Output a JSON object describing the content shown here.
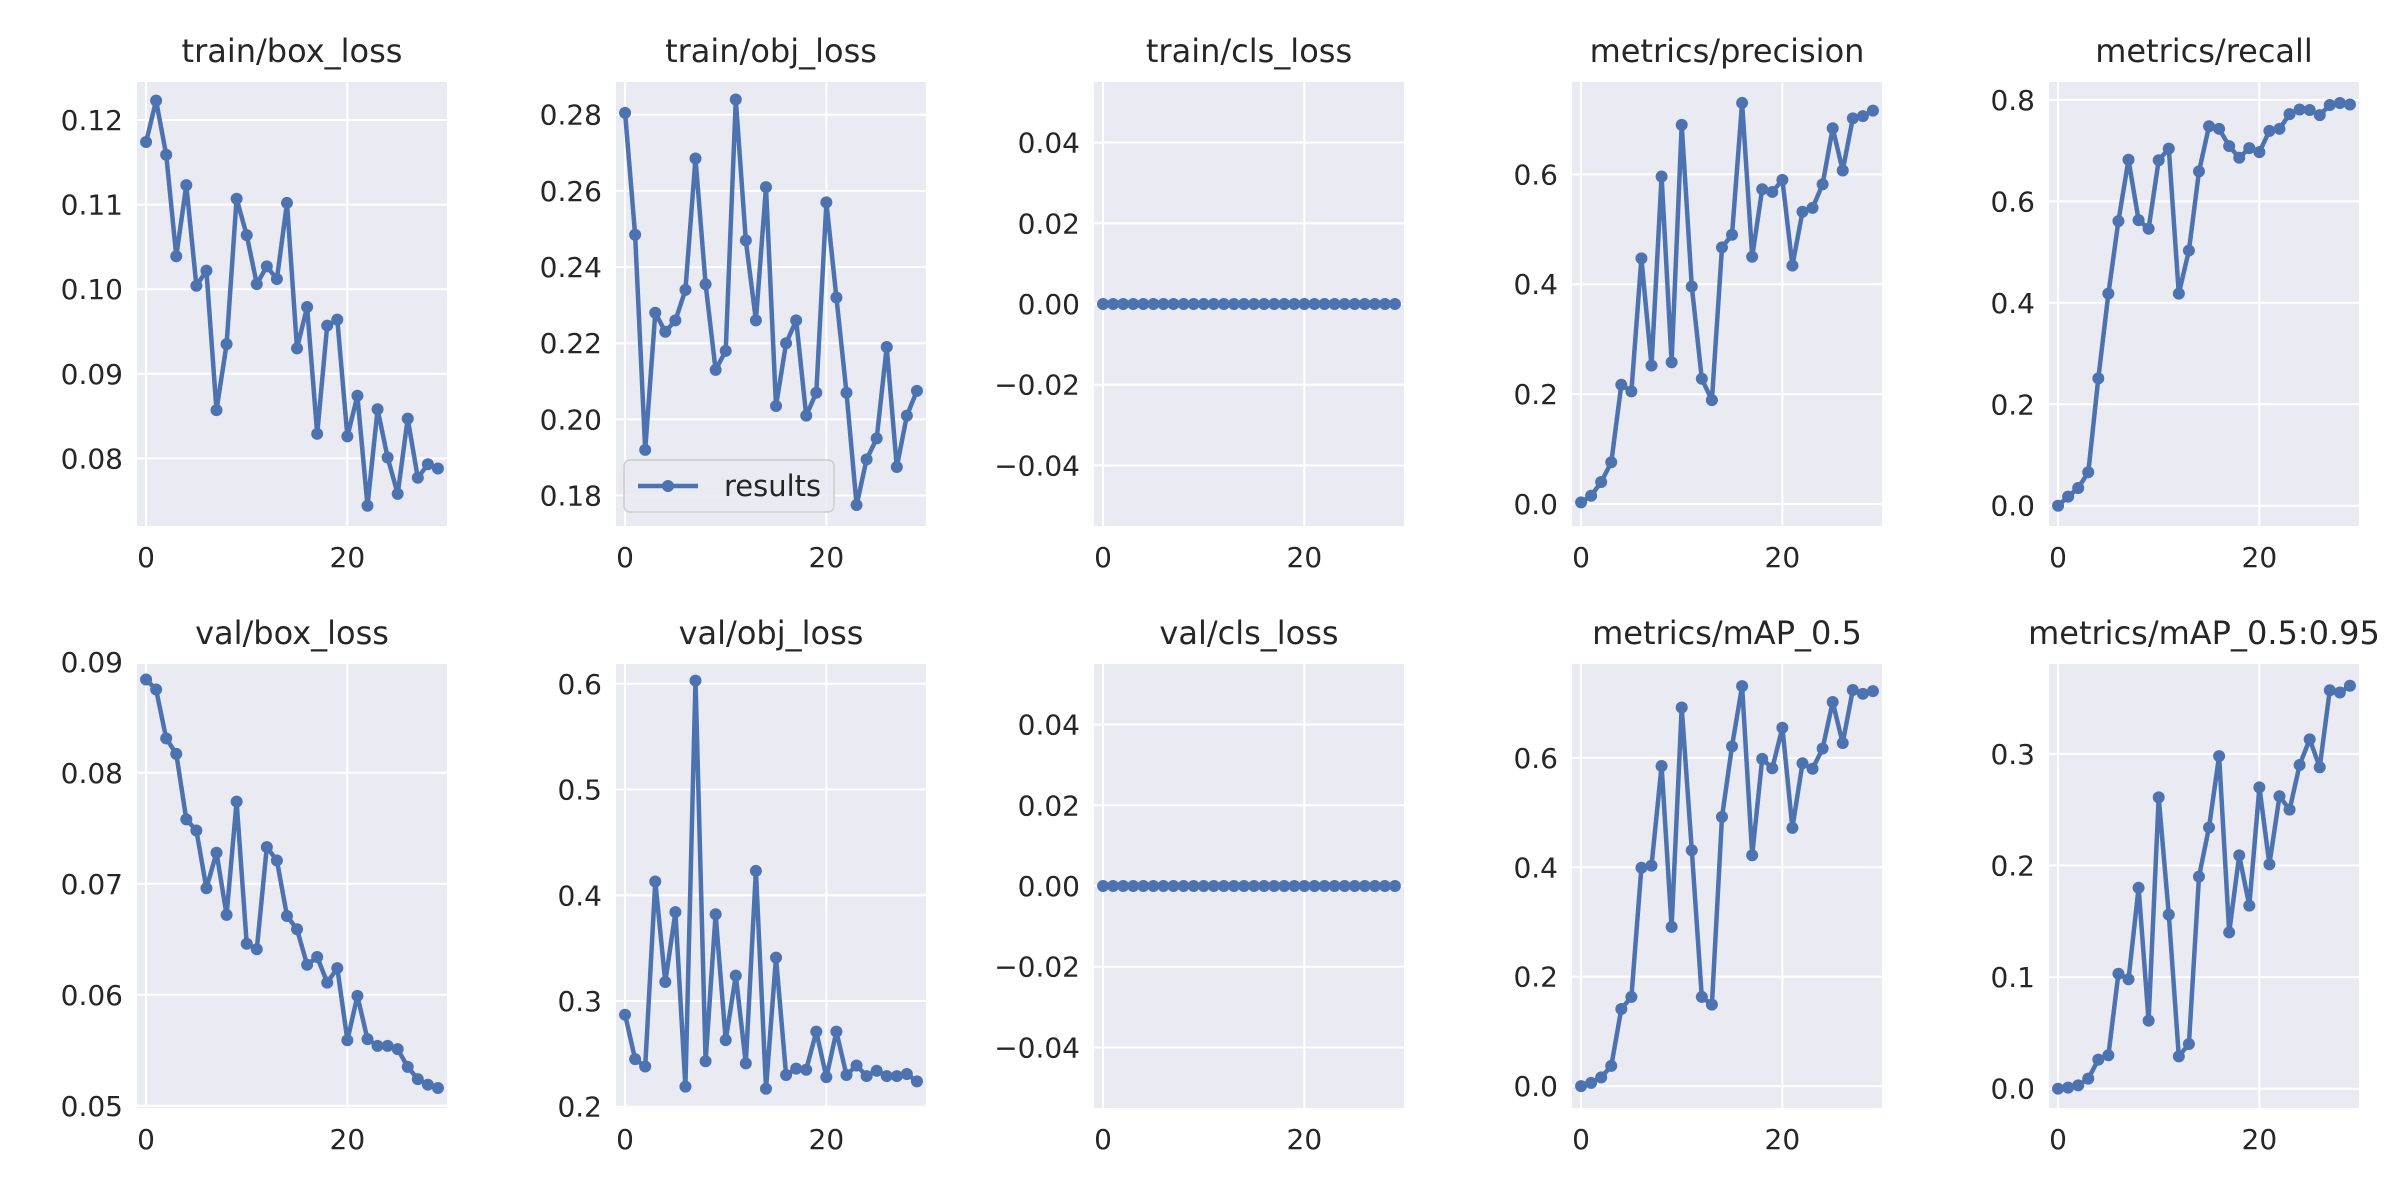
{
  "style": {
    "panel_bg": "#eaeaf2",
    "grid_color": "#ffffff",
    "series_color": "#4c72b0",
    "text_color": "#262626"
  },
  "legend": {
    "label": "results",
    "panel": 1,
    "placement": "lower left"
  },
  "chart_data": [
    {
      "type": "line",
      "title": "train/box_loss",
      "xlabel": "",
      "ylabel": "",
      "xlim": [
        -0.9,
        29.9
      ],
      "ylim": [
        0.072,
        0.1245
      ],
      "xticks": [
        0,
        20
      ],
      "yticks": [
        0.08,
        0.09,
        0.1,
        0.11,
        0.12
      ],
      "ytick_labels": [
        "0.08",
        "0.09",
        "0.10",
        "0.11",
        "0.12"
      ],
      "series": [
        {
          "name": "results",
          "values": [
            0.1174,
            0.1223,
            0.1159,
            0.1039,
            0.1123,
            0.1004,
            0.1022,
            0.0857,
            0.0935,
            0.1107,
            0.1064,
            0.1006,
            0.1027,
            0.1012,
            0.1102,
            0.093,
            0.0979,
            0.0829,
            0.0957,
            0.0964,
            0.0826,
            0.0874,
            0.0744,
            0.0858,
            0.0801,
            0.0758,
            0.0847,
            0.0777,
            0.0793,
            0.0788
          ]
        }
      ]
    },
    {
      "type": "line",
      "title": "train/obj_loss",
      "xlabel": "",
      "ylabel": "",
      "xlim": [
        -0.9,
        29.9
      ],
      "ylim": [
        0.172,
        0.2886
      ],
      "xticks": [
        0,
        20
      ],
      "yticks": [
        0.18,
        0.2,
        0.22,
        0.24,
        0.26,
        0.28
      ],
      "ytick_labels": [
        "0.18",
        "0.20",
        "0.22",
        "0.24",
        "0.26",
        "0.28"
      ],
      "series": [
        {
          "name": "results",
          "values": [
            0.2805,
            0.2485,
            0.192,
            0.228,
            0.223,
            0.226,
            0.234,
            0.2685,
            0.2355,
            0.213,
            0.218,
            0.284,
            0.247,
            0.226,
            0.261,
            0.2035,
            0.22,
            0.226,
            0.201,
            0.207,
            0.257,
            0.232,
            0.207,
            0.1775,
            0.1895,
            0.195,
            0.219,
            0.1875,
            0.201,
            0.2075
          ]
        }
      ]
    },
    {
      "type": "line",
      "title": "train/cls_loss",
      "xlabel": "",
      "ylabel": "",
      "xlim": [
        -0.9,
        29.9
      ],
      "ylim": [
        -0.055,
        0.055
      ],
      "xticks": [
        0,
        20
      ],
      "yticks": [
        -0.04,
        -0.02,
        0.0,
        0.02,
        0.04
      ],
      "ytick_labels": [
        "−0.04",
        "−0.02",
        "0.00",
        "0.02",
        "0.04"
      ],
      "series": [
        {
          "name": "results",
          "values": [
            0,
            0,
            0,
            0,
            0,
            0,
            0,
            0,
            0,
            0,
            0,
            0,
            0,
            0,
            0,
            0,
            0,
            0,
            0,
            0,
            0,
            0,
            0,
            0,
            0,
            0,
            0,
            0,
            0,
            0
          ]
        }
      ]
    },
    {
      "type": "line",
      "title": "metrics/precision",
      "xlabel": "",
      "ylabel": "",
      "xlim": [
        -0.9,
        29.9
      ],
      "ylim": [
        -0.04,
        0.7681
      ],
      "xticks": [
        0,
        20
      ],
      "yticks": [
        0.0,
        0.2,
        0.4,
        0.6
      ],
      "ytick_labels": [
        "0.0",
        "0.2",
        "0.4",
        "0.6"
      ],
      "series": [
        {
          "name": "results",
          "values": [
            0.003,
            0.015,
            0.04,
            0.076,
            0.217,
            0.205,
            0.447,
            0.252,
            0.596,
            0.258,
            0.69,
            0.396,
            0.228,
            0.189,
            0.467,
            0.49,
            0.73,
            0.45,
            0.573,
            0.568,
            0.59,
            0.434,
            0.532,
            0.539,
            0.582,
            0.684,
            0.607,
            0.702,
            0.706,
            0.716
          ]
        }
      ]
    },
    {
      "type": "line",
      "title": "metrics/recall",
      "xlabel": "",
      "ylabel": "",
      "xlim": [
        -0.9,
        29.9
      ],
      "ylim": [
        -0.04,
        0.8353
      ],
      "xticks": [
        0,
        20
      ],
      "yticks": [
        0.0,
        0.2,
        0.4,
        0.6,
        0.8
      ],
      "ytick_labels": [
        "0.0",
        "0.2",
        "0.4",
        "0.6",
        "0.8"
      ],
      "series": [
        {
          "name": "results",
          "values": [
            0.0,
            0.018,
            0.035,
            0.066,
            0.251,
            0.418,
            0.561,
            0.682,
            0.563,
            0.546,
            0.681,
            0.704,
            0.418,
            0.503,
            0.659,
            0.748,
            0.743,
            0.709,
            0.686,
            0.705,
            0.697,
            0.739,
            0.743,
            0.772,
            0.781,
            0.78,
            0.77,
            0.79,
            0.794,
            0.791
          ]
        }
      ]
    },
    {
      "type": "line",
      "title": "val/box_loss",
      "xlabel": "",
      "ylabel": "",
      "xlim": [
        -0.9,
        29.9
      ],
      "ylim": [
        0.0498,
        0.0898
      ],
      "xticks": [
        0,
        20
      ],
      "yticks": [
        0.05,
        0.06,
        0.07,
        0.08,
        0.09
      ],
      "ytick_labels": [
        "0.05",
        "0.06",
        "0.07",
        "0.08",
        "0.09"
      ],
      "series": [
        {
          "name": "results",
          "values": [
            0.0884,
            0.0875,
            0.0831,
            0.0817,
            0.0758,
            0.0748,
            0.0696,
            0.0728,
            0.0672,
            0.0774,
            0.0646,
            0.0641,
            0.0733,
            0.0721,
            0.0671,
            0.0659,
            0.0627,
            0.0634,
            0.0611,
            0.0624,
            0.0559,
            0.0599,
            0.056,
            0.0554,
            0.0554,
            0.0551,
            0.0535,
            0.0524,
            0.0519,
            0.0516
          ]
        }
      ]
    },
    {
      "type": "line",
      "title": "val/obj_loss",
      "xlabel": "",
      "ylabel": "",
      "xlim": [
        -0.9,
        29.9
      ],
      "ylim": [
        0.1988,
        0.6187
      ],
      "xticks": [
        0,
        20
      ],
      "yticks": [
        0.2,
        0.3,
        0.4,
        0.5,
        0.6
      ],
      "ytick_labels": [
        "0.2",
        "0.3",
        "0.4",
        "0.5",
        "0.6"
      ],
      "series": [
        {
          "name": "results",
          "values": [
            0.287,
            0.245,
            0.238,
            0.413,
            0.318,
            0.384,
            0.219,
            0.603,
            0.243,
            0.382,
            0.263,
            0.324,
            0.241,
            0.423,
            0.217,
            0.341,
            0.23,
            0.236,
            0.235,
            0.271,
            0.228,
            0.271,
            0.23,
            0.239,
            0.229,
            0.234,
            0.229,
            0.229,
            0.231,
            0.224
          ]
        }
      ]
    },
    {
      "type": "line",
      "title": "val/cls_loss",
      "xlabel": "",
      "ylabel": "",
      "xlim": [
        -0.9,
        29.9
      ],
      "ylim": [
        -0.055,
        0.055
      ],
      "xticks": [
        0,
        20
      ],
      "yticks": [
        -0.04,
        -0.02,
        0.0,
        0.02,
        0.04
      ],
      "ytick_labels": [
        "−0.04",
        "−0.02",
        "0.00",
        "0.02",
        "0.04"
      ],
      "series": [
        {
          "name": "results",
          "values": [
            0,
            0,
            0,
            0,
            0,
            0,
            0,
            0,
            0,
            0,
            0,
            0,
            0,
            0,
            0,
            0,
            0,
            0,
            0,
            0,
            0,
            0,
            0,
            0,
            0,
            0,
            0,
            0,
            0,
            0
          ]
        }
      ]
    },
    {
      "type": "line",
      "title": "metrics/mAP_0.5",
      "xlabel": "",
      "ylabel": "",
      "xlim": [
        -0.9,
        29.9
      ],
      "ylim": [
        -0.04,
        0.7715
      ],
      "xticks": [
        0,
        20
      ],
      "yticks": [
        0.0,
        0.2,
        0.4,
        0.6
      ],
      "ytick_labels": [
        "0.0",
        "0.2",
        "0.4",
        "0.6"
      ],
      "series": [
        {
          "name": "results",
          "values": [
            0.0,
            0.006,
            0.016,
            0.037,
            0.141,
            0.163,
            0.399,
            0.403,
            0.585,
            0.291,
            0.692,
            0.431,
            0.163,
            0.149,
            0.492,
            0.621,
            0.731,
            0.422,
            0.598,
            0.581,
            0.655,
            0.472,
            0.59,
            0.58,
            0.617,
            0.702,
            0.627,
            0.724,
            0.717,
            0.722
          ]
        }
      ]
    },
    {
      "type": "line",
      "title": "metrics/mAP_0.5:0.95",
      "xlabel": "",
      "ylabel": "",
      "xlim": [
        -0.9,
        29.9
      ],
      "ylim": [
        -0.0173,
        0.3805
      ],
      "xticks": [
        0,
        20
      ],
      "yticks": [
        0.0,
        0.1,
        0.2,
        0.3
      ],
      "ytick_labels": [
        "0.0",
        "0.1",
        "0.2",
        "0.3"
      ],
      "series": [
        {
          "name": "results",
          "values": [
            0.0,
            0.001,
            0.003,
            0.009,
            0.026,
            0.03,
            0.103,
            0.098,
            0.18,
            0.061,
            0.261,
            0.156,
            0.029,
            0.04,
            0.19,
            0.234,
            0.298,
            0.14,
            0.209,
            0.164,
            0.27,
            0.201,
            0.262,
            0.25,
            0.29,
            0.313,
            0.288,
            0.357,
            0.355,
            0.361
          ]
        }
      ]
    }
  ]
}
